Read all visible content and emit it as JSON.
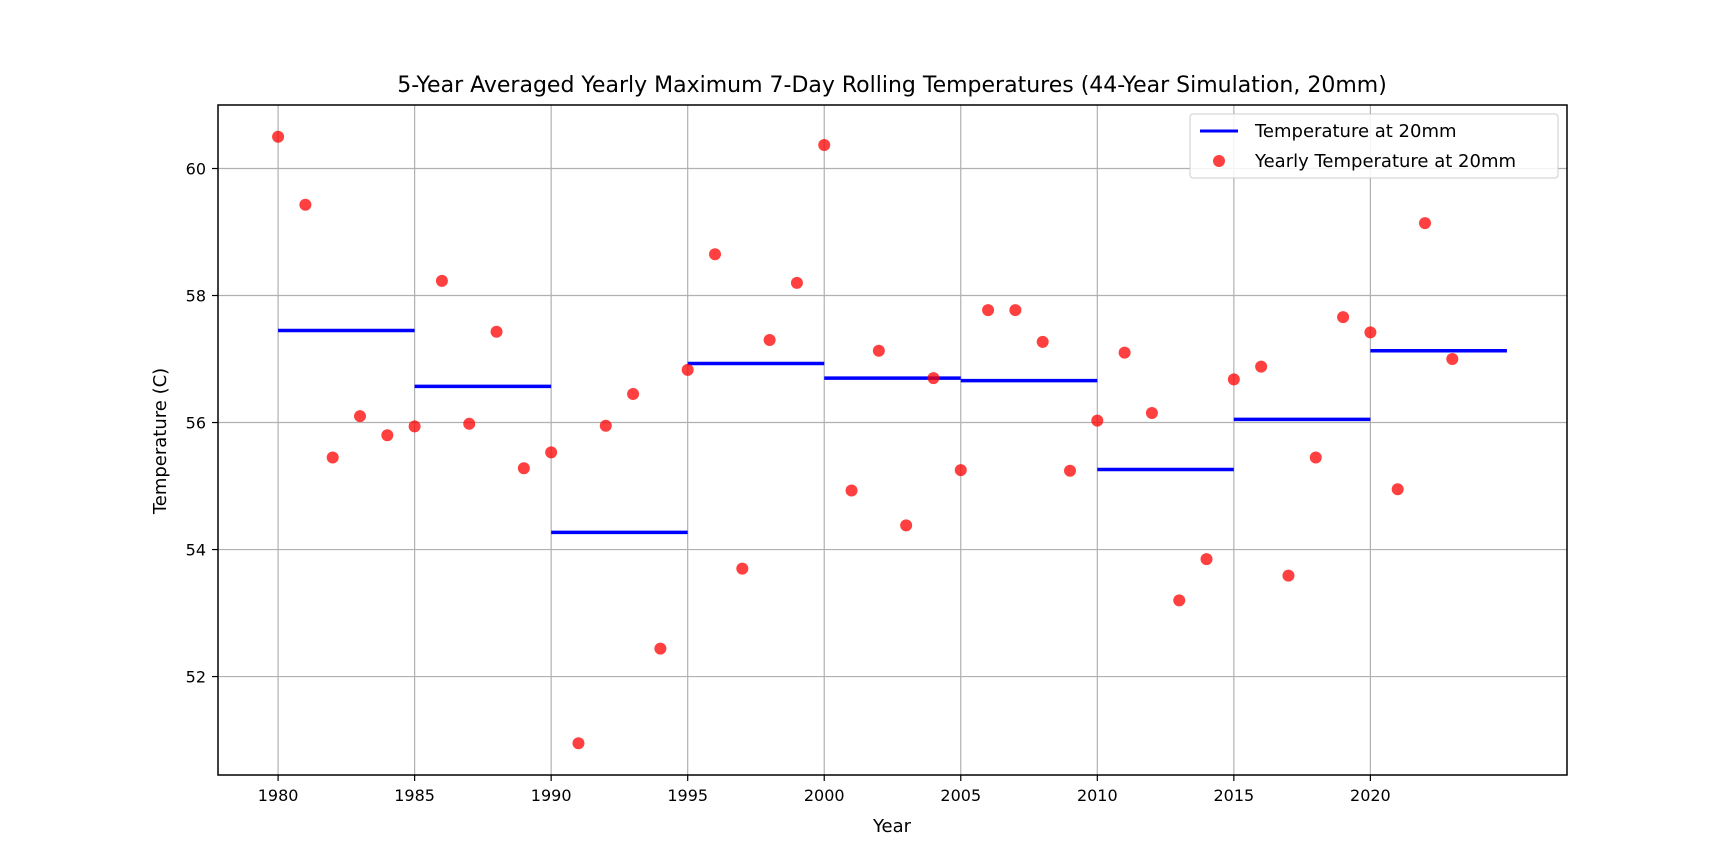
{
  "chart_data": {
    "type": "scatter",
    "title": "5-Year Averaged Yearly Maximum 7-Day Rolling Temperatures (44-Year Simulation, 20mm)",
    "xlabel": "Year",
    "ylabel": "Temperature (C)",
    "xlim": [
      1977.8,
      2027.2
    ],
    "ylim": [
      50.45,
      61.0
    ],
    "xticks": [
      1980,
      1985,
      1990,
      1995,
      2000,
      2005,
      2010,
      2015,
      2020
    ],
    "yticks": [
      52,
      54,
      56,
      58,
      60
    ],
    "grid": true,
    "legend_position": "upper right",
    "colors": {
      "line": "#0000ff",
      "points": "#ff0000",
      "grid": "#b0b0b0"
    },
    "series": [
      {
        "name": "Temperature at 20mm",
        "kind": "step",
        "segments": [
          {
            "x_start": 1980,
            "x_end": 1985,
            "y": 57.45
          },
          {
            "x_start": 1985,
            "x_end": 1990,
            "y": 56.57
          },
          {
            "x_start": 1990,
            "x_end": 1995,
            "y": 54.27
          },
          {
            "x_start": 1995,
            "x_end": 2000,
            "y": 56.93
          },
          {
            "x_start": 2000,
            "x_end": 2005,
            "y": 56.7
          },
          {
            "x_start": 2005,
            "x_end": 2010,
            "y": 56.66
          },
          {
            "x_start": 2010,
            "x_end": 2015,
            "y": 55.26
          },
          {
            "x_start": 2015,
            "x_end": 2020,
            "y": 56.05
          },
          {
            "x_start": 2020,
            "x_end": 2025,
            "y": 57.13
          }
        ]
      },
      {
        "name": "Yearly Temperature at 20mm",
        "kind": "scatter",
        "x": [
          1980,
          1981,
          1982,
          1983,
          1984,
          1985,
          1986,
          1987,
          1988,
          1989,
          1990,
          1991,
          1992,
          1993,
          1994,
          1995,
          1996,
          1997,
          1998,
          1999,
          2000,
          2001,
          2002,
          2003,
          2004,
          2005,
          2006,
          2007,
          2008,
          2009,
          2010,
          2011,
          2012,
          2013,
          2014,
          2015,
          2016,
          2017,
          2018,
          2019,
          2020,
          2021,
          2022,
          2023
        ],
        "y": [
          60.5,
          59.43,
          55.45,
          56.1,
          55.8,
          55.94,
          58.23,
          55.98,
          57.43,
          55.28,
          55.53,
          50.95,
          55.95,
          56.45,
          52.44,
          56.83,
          58.65,
          53.7,
          57.3,
          58.2,
          60.37,
          54.93,
          57.13,
          54.38,
          56.7,
          55.25,
          57.77,
          57.77,
          57.27,
          55.24,
          56.03,
          57.1,
          56.15,
          53.2,
          53.85,
          56.68,
          56.88,
          53.59,
          55.45,
          57.66,
          57.42,
          54.95,
          59.14,
          57.0
        ]
      }
    ]
  }
}
